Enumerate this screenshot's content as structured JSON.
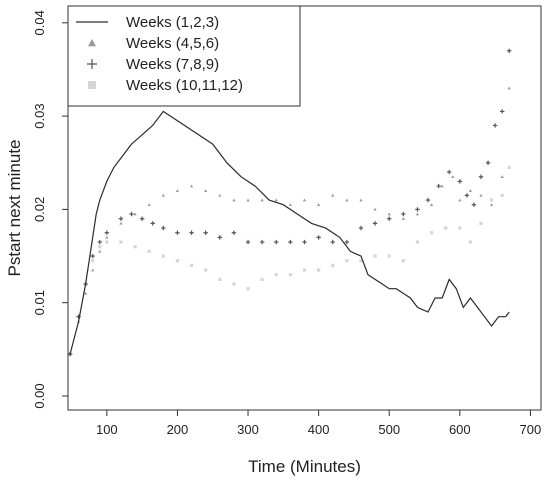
{
  "chart_data": {
    "type": "line",
    "title": "",
    "xlabel": "Time (Minutes)",
    "ylabel": "Pstart next minute",
    "xlim": [
      45,
      715
    ],
    "ylim": [
      -0.0015,
      0.0418
    ],
    "xticks": [
      100,
      200,
      300,
      400,
      500,
      600,
      700
    ],
    "xtick_labels": [
      "100",
      "200",
      "300",
      "400",
      "500",
      "600",
      "700"
    ],
    "yticks": [
      0.0,
      0.01,
      0.02,
      0.03,
      0.04
    ],
    "ytick_labels": [
      "0.00",
      "0.01",
      "0.02",
      "0.03",
      "0.04"
    ],
    "grid": false,
    "legend_position": "top-left",
    "series": [
      {
        "name": "Weeks (1,2,3)",
        "style": "line",
        "color": "#2b2b2b",
        "x": [
          48,
          60,
          70,
          80,
          85,
          90,
          100,
          110,
          120,
          135,
          150,
          165,
          180,
          190,
          210,
          230,
          250,
          270,
          290,
          310,
          330,
          350,
          370,
          390,
          410,
          430,
          445,
          460,
          470,
          480,
          490,
          500,
          510,
          520,
          530,
          540,
          555,
          565,
          575,
          585,
          595,
          605,
          615,
          625,
          635,
          645,
          655,
          665,
          670
        ],
        "y": [
          0.0045,
          0.008,
          0.012,
          0.017,
          0.0195,
          0.021,
          0.023,
          0.0245,
          0.0255,
          0.027,
          0.028,
          0.029,
          0.0305,
          0.03,
          0.029,
          0.028,
          0.027,
          0.025,
          0.0235,
          0.0225,
          0.021,
          0.0205,
          0.0195,
          0.0185,
          0.018,
          0.017,
          0.0155,
          0.015,
          0.013,
          0.0125,
          0.012,
          0.0115,
          0.0115,
          0.011,
          0.0105,
          0.0095,
          0.009,
          0.0105,
          0.0105,
          0.0125,
          0.0115,
          0.0095,
          0.0105,
          0.0095,
          0.0085,
          0.0075,
          0.0085,
          0.0085,
          0.009
        ]
      },
      {
        "name": "Weeks (4,5,6)",
        "style": "points",
        "marker": "triangle",
        "color": "#9a9a9a",
        "x": [
          48,
          60,
          70,
          80,
          90,
          100,
          120,
          140,
          160,
          180,
          200,
          220,
          240,
          260,
          280,
          300,
          320,
          340,
          360,
          380,
          400,
          420,
          440,
          460,
          480,
          500,
          520,
          540,
          560,
          575,
          590,
          600,
          615,
          630,
          645,
          660,
          670
        ],
        "y": [
          0.0045,
          0.008,
          0.011,
          0.0135,
          0.0155,
          0.017,
          0.0185,
          0.0195,
          0.0205,
          0.0215,
          0.022,
          0.0225,
          0.022,
          0.0215,
          0.021,
          0.021,
          0.021,
          0.021,
          0.0205,
          0.021,
          0.0205,
          0.0215,
          0.021,
          0.021,
          0.02,
          0.0195,
          0.019,
          0.0195,
          0.0205,
          0.0225,
          0.0235,
          0.021,
          0.022,
          0.0215,
          0.0205,
          0.0235,
          0.033
        ]
      },
      {
        "name": "Weeks (7,8,9)",
        "style": "points",
        "marker": "plus",
        "color": "#555555",
        "x": [
          48,
          60,
          70,
          80,
          90,
          100,
          120,
          135,
          150,
          165,
          180,
          200,
          220,
          240,
          260,
          280,
          300,
          320,
          340,
          360,
          380,
          400,
          420,
          440,
          460,
          480,
          500,
          520,
          540,
          555,
          570,
          585,
          600,
          610,
          620,
          630,
          640,
          650,
          660,
          670
        ],
        "y": [
          0.0045,
          0.0085,
          0.012,
          0.015,
          0.0165,
          0.0175,
          0.019,
          0.0195,
          0.019,
          0.0185,
          0.018,
          0.0175,
          0.0175,
          0.0175,
          0.017,
          0.0175,
          0.0165,
          0.0165,
          0.0165,
          0.0165,
          0.0165,
          0.017,
          0.0165,
          0.0165,
          0.018,
          0.0185,
          0.019,
          0.0195,
          0.02,
          0.021,
          0.0225,
          0.024,
          0.023,
          0.0215,
          0.0205,
          0.0235,
          0.025,
          0.029,
          0.0305,
          0.037
        ]
      },
      {
        "name": "Weeks (10,11,12)",
        "style": "points",
        "marker": "square",
        "color": "#d6d6d6",
        "x": [
          48,
          60,
          70,
          80,
          90,
          100,
          120,
          140,
          160,
          180,
          200,
          220,
          240,
          260,
          280,
          300,
          320,
          340,
          360,
          380,
          400,
          420,
          440,
          460,
          480,
          500,
          520,
          540,
          560,
          580,
          600,
          615,
          630,
          645,
          660,
          670
        ],
        "y": [
          0.0045,
          0.0085,
          0.012,
          0.0145,
          0.016,
          0.0165,
          0.0165,
          0.016,
          0.0155,
          0.015,
          0.0145,
          0.014,
          0.0135,
          0.0125,
          0.012,
          0.0115,
          0.0125,
          0.013,
          0.013,
          0.0135,
          0.0135,
          0.014,
          0.0145,
          0.0145,
          0.015,
          0.015,
          0.0145,
          0.0165,
          0.0175,
          0.018,
          0.018,
          0.0165,
          0.0185,
          0.021,
          0.0215,
          0.0245
        ]
      }
    ]
  }
}
